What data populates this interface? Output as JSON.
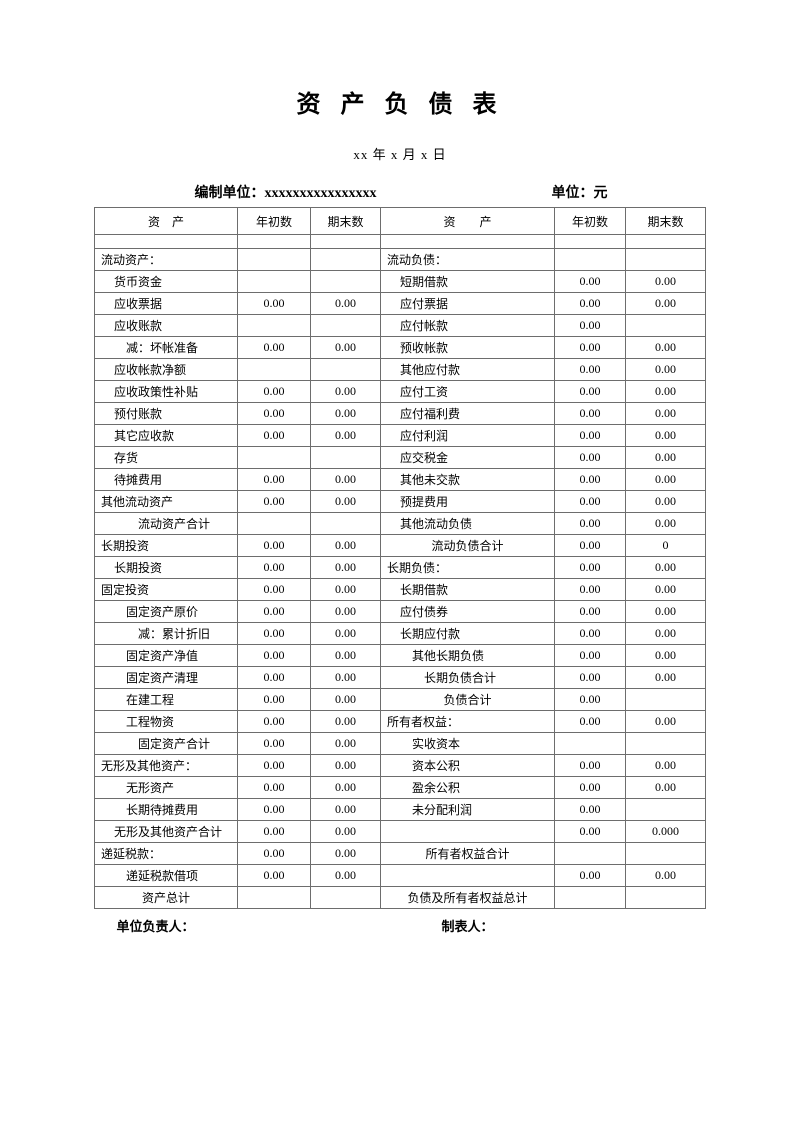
{
  "page": {
    "title": "资 产 负 债 表",
    "date": "xx 年 x 月 x 日",
    "prepared_label": "编制单位：",
    "prepared_value": "xxxxxxxxxxxxxxxx",
    "unit_label": "单位：",
    "unit_value": "元",
    "footer_left": "单位负责人：",
    "footer_right": "制表人："
  },
  "table": {
    "headers": {
      "asset_label": "资　产",
      "asset_begin": "年初数",
      "asset_end": "期末数",
      "liability_label": "资　　产",
      "liability_begin": "年初数",
      "liability_end": "期末数"
    },
    "rows": [
      {
        "left": {
          "label": "",
          "indent": 0,
          "begin": "",
          "end": ""
        },
        "right": {
          "label": "",
          "indent": 0,
          "begin": "",
          "end": ""
        }
      },
      {
        "left": {
          "label": "流动资产：",
          "indent": 0,
          "begin": "",
          "end": ""
        },
        "right": {
          "label": "流动负债：",
          "indent": 0,
          "begin": "",
          "end": ""
        }
      },
      {
        "left": {
          "label": "货币资金",
          "indent": 1,
          "begin": "",
          "end": ""
        },
        "right": {
          "label": "短期借款",
          "indent": 1,
          "begin": "0.00",
          "end": "0.00"
        }
      },
      {
        "left": {
          "label": "应收票据",
          "indent": 1,
          "begin": "0.00",
          "end": "0.00"
        },
        "right": {
          "label": "应付票据",
          "indent": 1,
          "begin": "0.00",
          "end": "0.00"
        }
      },
      {
        "left": {
          "label": "应收账款",
          "indent": 1,
          "begin": "",
          "end": ""
        },
        "right": {
          "label": "应付帐款",
          "indent": 1,
          "begin": "0.00",
          "end": ""
        }
      },
      {
        "left": {
          "label": "减：坏帐准备",
          "indent": 2,
          "begin": "0.00",
          "end": "0.00"
        },
        "right": {
          "label": "预收帐款",
          "indent": 1,
          "begin": "0.00",
          "end": "0.00"
        }
      },
      {
        "left": {
          "label": "应收帐款净额",
          "indent": 1,
          "begin": "",
          "end": ""
        },
        "right": {
          "label": "其他应付款",
          "indent": 1,
          "begin": "0.00",
          "end": "0.00"
        }
      },
      {
        "left": {
          "label": "应收政策性补贴",
          "indent": 1,
          "begin": "0.00",
          "end": "0.00"
        },
        "right": {
          "label": "应付工资",
          "indent": 1,
          "begin": "0.00",
          "end": "0.00"
        }
      },
      {
        "left": {
          "label": "预付账款",
          "indent": 1,
          "begin": "0.00",
          "end": "0.00"
        },
        "right": {
          "label": "应付福利费",
          "indent": 1,
          "begin": "0.00",
          "end": "0.00"
        }
      },
      {
        "left": {
          "label": "其它应收款",
          "indent": 1,
          "begin": "0.00",
          "end": "0.00"
        },
        "right": {
          "label": "应付利润",
          "indent": 1,
          "begin": "0.00",
          "end": "0.00"
        }
      },
      {
        "left": {
          "label": "存货",
          "indent": 1,
          "begin": "",
          "end": ""
        },
        "right": {
          "label": "应交税金",
          "indent": 1,
          "begin": "0.00",
          "end": "0.00"
        }
      },
      {
        "left": {
          "label": "待摊费用",
          "indent": 1,
          "begin": "0.00",
          "end": "0.00"
        },
        "right": {
          "label": "其他未交款",
          "indent": 1,
          "begin": "0.00",
          "end": "0.00"
        }
      },
      {
        "left": {
          "label": "其他流动资产",
          "indent": 0,
          "begin": "0.00",
          "end": "0.00"
        },
        "right": {
          "label": "预提费用",
          "indent": 1,
          "begin": "0.00",
          "end": "0.00"
        }
      },
      {
        "left": {
          "label": "流动资产合计",
          "indent": 3,
          "begin": "",
          "end": ""
        },
        "right": {
          "label": "其他流动负债",
          "indent": 1,
          "begin": "0.00",
          "end": "0.00"
        }
      },
      {
        "left": {
          "label": "长期投资",
          "indent": 0,
          "begin": "0.00",
          "end": "0.00"
        },
        "right": {
          "label": "流动负债合计",
          "indent": "c",
          "begin": "0.00",
          "end": "0"
        }
      },
      {
        "left": {
          "label": "长期投资",
          "indent": 1,
          "begin": "0.00",
          "end": "0.00"
        },
        "right": {
          "label": "长期负债：",
          "indent": 0,
          "begin": "0.00",
          "end": "0.00"
        }
      },
      {
        "left": {
          "label": "固定投资",
          "indent": 0,
          "begin": "0.00",
          "end": "0.00"
        },
        "right": {
          "label": "长期借款",
          "indent": 1,
          "begin": "0.00",
          "end": "0.00"
        }
      },
      {
        "left": {
          "label": "固定资产原价",
          "indent": 2,
          "begin": "0.00",
          "end": "0.00"
        },
        "right": {
          "label": "应付债券",
          "indent": 1,
          "begin": "0.00",
          "end": "0.00"
        }
      },
      {
        "left": {
          "label": "减：累计折旧",
          "indent": 3,
          "begin": "0.00",
          "end": "0.00"
        },
        "right": {
          "label": "长期应付款",
          "indent": 1,
          "begin": "0.00",
          "end": "0.00"
        }
      },
      {
        "left": {
          "label": "固定资产净值",
          "indent": 2,
          "begin": "0.00",
          "end": "0.00"
        },
        "right": {
          "label": "其他长期负债",
          "indent": 2,
          "begin": "0.00",
          "end": "0.00"
        }
      },
      {
        "left": {
          "label": "固定资产清理",
          "indent": 2,
          "begin": "0.00",
          "end": "0.00"
        },
        "right": {
          "label": "长期负债合计",
          "indent": 3,
          "begin": "0.00",
          "end": "0.00"
        }
      },
      {
        "left": {
          "label": "在建工程",
          "indent": 2,
          "begin": "0.00",
          "end": "0.00"
        },
        "right": {
          "label": "负债合计",
          "indent": "c",
          "begin": "0.00",
          "end": ""
        }
      },
      {
        "left": {
          "label": "工程物资",
          "indent": 2,
          "begin": "0.00",
          "end": "0.00"
        },
        "right": {
          "label": "所有者权益：",
          "indent": 0,
          "begin": "0.00",
          "end": "0.00"
        }
      },
      {
        "left": {
          "label": "固定资产合计",
          "indent": 3,
          "begin": "0.00",
          "end": "0.00"
        },
        "right": {
          "label": "实收资本",
          "indent": 2,
          "begin": "",
          "end": ""
        }
      },
      {
        "left": {
          "label": "无形及其他资产：",
          "indent": 0,
          "begin": "0.00",
          "end": "0.00"
        },
        "right": {
          "label": "资本公积",
          "indent": 2,
          "begin": "0.00",
          "end": "0.00"
        }
      },
      {
        "left": {
          "label": "无形资产",
          "indent": 2,
          "begin": "0.00",
          "end": "0.00"
        },
        "right": {
          "label": "盈余公积",
          "indent": 2,
          "begin": "0.00",
          "end": "0.00"
        }
      },
      {
        "left": {
          "label": "长期待摊费用",
          "indent": 2,
          "begin": "0.00",
          "end": "0.00"
        },
        "right": {
          "label": "未分配利润",
          "indent": 2,
          "begin": "0.00",
          "end": ""
        }
      },
      {
        "left": {
          "label": "无形及其他资产合计",
          "indent": 1,
          "begin": "0.00",
          "end": "0.00"
        },
        "right": {
          "label": "",
          "indent": 0,
          "begin": "0.00",
          "end": "0.000"
        }
      },
      {
        "left": {
          "label": "递延税款：",
          "indent": 0,
          "begin": "0.00",
          "end": "0.00"
        },
        "right": {
          "label": "所有者权益合计",
          "indent": "c",
          "begin": "",
          "end": ""
        }
      },
      {
        "left": {
          "label": "递延税款借项",
          "indent": 2,
          "begin": "0.00",
          "end": "0.00"
        },
        "right": {
          "label": "",
          "indent": 0,
          "begin": "0.00",
          "end": "0.00"
        }
      },
      {
        "left": {
          "label": "资产总计",
          "indent": "c",
          "begin": "",
          "end": ""
        },
        "right": {
          "label": "负债及所有者权益总计",
          "indent": "c",
          "begin": "",
          "end": ""
        }
      }
    ]
  }
}
